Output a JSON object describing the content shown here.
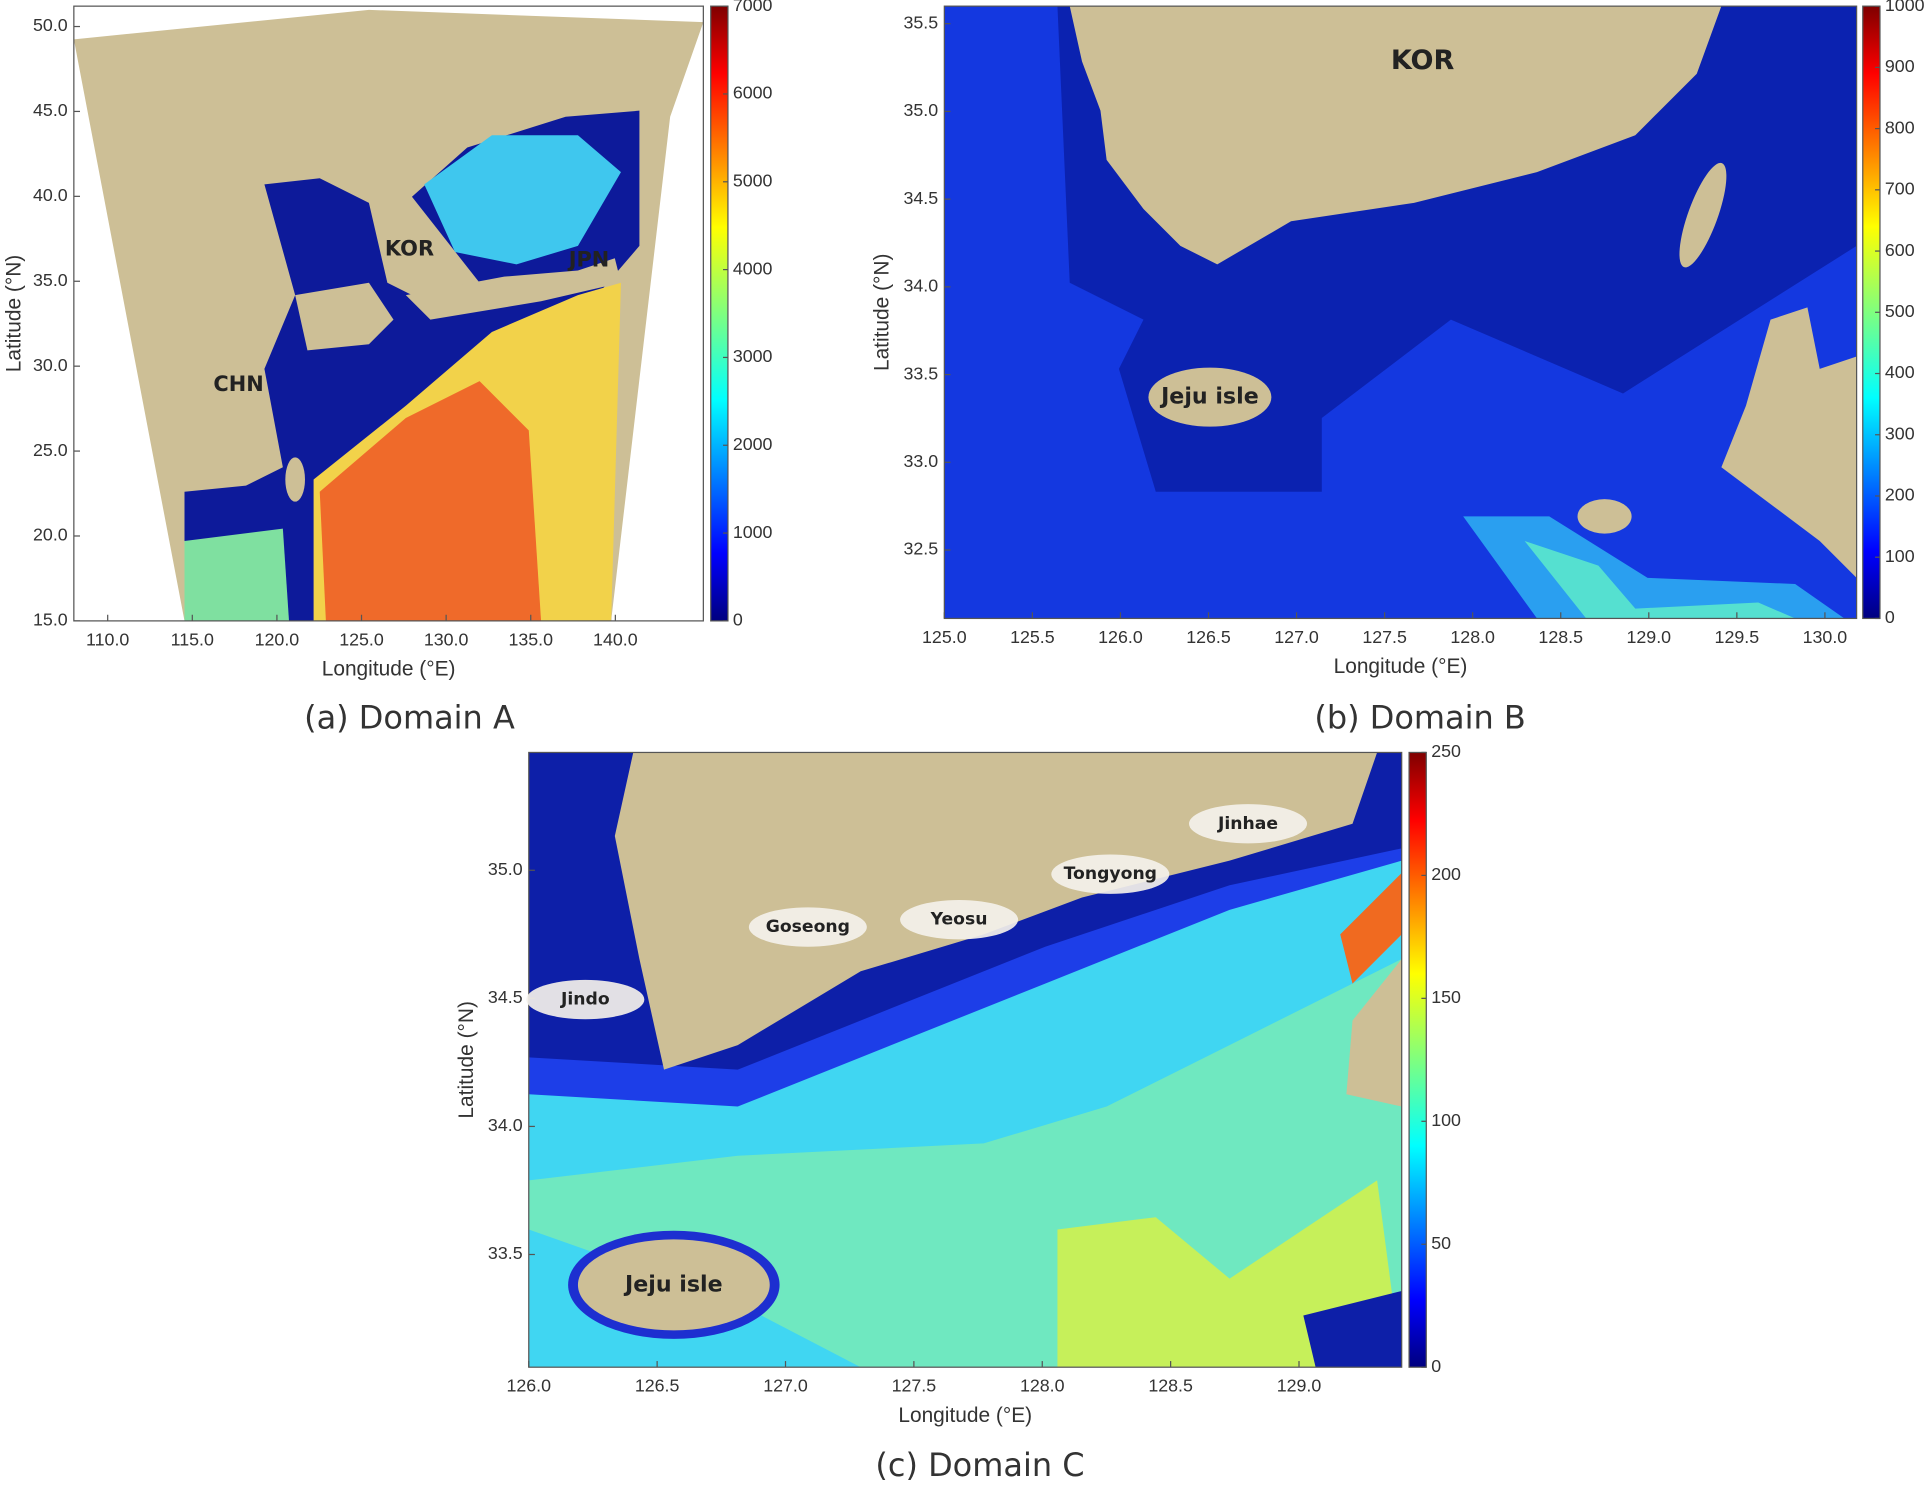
{
  "chart_data": [
    {
      "type": "map",
      "caption": "(a) Domain A",
      "xlabel": "Longitude (°E)",
      "ylabel": "Latitude (°N)",
      "xlim": [
        108,
        145.2
      ],
      "ylim": [
        15,
        51.2
      ],
      "xticks": [
        {
          "value": 110,
          "label": "110.0"
        },
        {
          "value": 115,
          "label": "115.0"
        },
        {
          "value": 120,
          "label": "120.0"
        },
        {
          "value": 125,
          "label": "125.0"
        },
        {
          "value": 130,
          "label": "130.0"
        },
        {
          "value": 135,
          "label": "135.0"
        },
        {
          "value": 140,
          "label": "140.0"
        }
      ],
      "yticks": [
        {
          "value": 15,
          "label": "15.0"
        },
        {
          "value": 20,
          "label": "20.0"
        },
        {
          "value": 25,
          "label": "25.0"
        },
        {
          "value": 30,
          "label": "30.0"
        },
        {
          "value": 35,
          "label": "35.0"
        },
        {
          "value": 40,
          "label": "40.0"
        },
        {
          "value": 45,
          "label": "45.0"
        },
        {
          "value": 50,
          "label": "50.0"
        }
      ],
      "colorbar": {
        "lim": [
          0,
          7000
        ],
        "ticks": [
          0,
          1000,
          2000,
          3000,
          4000,
          5000,
          6000,
          7000
        ]
      },
      "labels": [
        "CHN",
        "KOR",
        "JPN"
      ]
    },
    {
      "type": "map",
      "caption": "(b) Domain B",
      "xlabel": "Longitude (°E)",
      "ylabel": "Latitude (°N)",
      "xlim": [
        125,
        130.18
      ],
      "ylim": [
        32.11,
        35.6
      ],
      "xticks": [
        {
          "value": 125,
          "label": "125.0"
        },
        125.5,
        {
          "value": 126,
          "label": "126.0"
        },
        126.5,
        {
          "value": 127,
          "label": "127.0"
        },
        127.5,
        {
          "value": 128,
          "label": "128.0"
        },
        128.5,
        {
          "value": 129,
          "label": "129.0"
        },
        129.5,
        {
          "value": 130,
          "label": "130.0"
        }
      ],
      "yticks": [
        32.5,
        {
          "value": 33,
          "label": "33.0"
        },
        33.5,
        {
          "value": 34,
          "label": "34.0"
        },
        34.5,
        {
          "value": 35,
          "label": "35.0"
        },
        35.5
      ],
      "colorbar": {
        "lim": [
          0,
          1000
        ],
        "ticks": [
          0,
          100,
          200,
          300,
          400,
          500,
          600,
          700,
          800,
          900,
          1000
        ]
      },
      "labels": [
        "KOR",
        "Jeju isle"
      ]
    },
    {
      "type": "map",
      "caption": "(c) Domain C",
      "xlabel": "Longitude (°E)",
      "ylabel": "Latitude (°N)",
      "xlim": [
        126,
        129.4
      ],
      "ylim": [
        33.06,
        35.46
      ],
      "xticks": [
        {
          "value": 126,
          "label": "126.0"
        },
        126.5,
        {
          "value": 127,
          "label": "127.0"
        },
        127.5,
        {
          "value": 128,
          "label": "128.0"
        },
        128.5,
        {
          "value": 129,
          "label": "129.0"
        }
      ],
      "yticks": [
        33.5,
        {
          "value": 34,
          "label": "34.0"
        },
        34.5,
        {
          "value": 35,
          "label": "35.0"
        }
      ],
      "colorbar": {
        "lim": [
          0,
          250
        ],
        "ticks": [
          0,
          50,
          100,
          150,
          200,
          250
        ]
      },
      "labels": [
        "Jinhae",
        "Tongyong",
        "Yeosu",
        "Goseong",
        "Jindo",
        "Jeju isle"
      ]
    }
  ]
}
